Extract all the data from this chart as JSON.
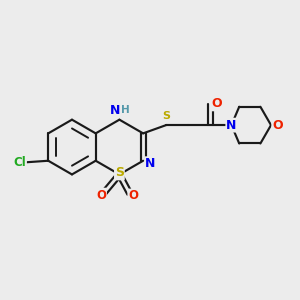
{
  "bg_color": "#ececec",
  "bond_color": "#1a1a1a",
  "colors": {
    "N": "#0000ee",
    "O": "#ee2200",
    "S": "#bbaa00",
    "Cl": "#22aa22",
    "H": "#5599aa"
  },
  "lw": 1.55,
  "fs": 9.0,
  "figsize": [
    3.0,
    3.0
  ],
  "dpi": 100,
  "xlim": [
    0,
    10
  ],
  "ylim": [
    0,
    10
  ]
}
